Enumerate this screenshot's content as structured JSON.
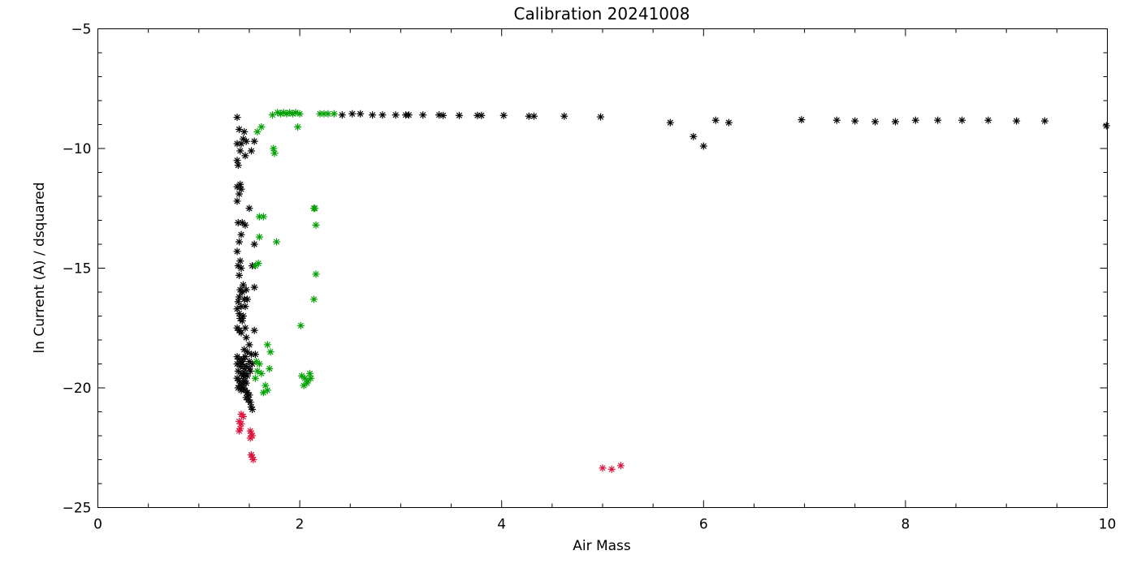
{
  "chart_data": {
    "type": "scatter",
    "title": "Calibration 20241008",
    "xlabel": "Air Mass",
    "ylabel": "ln Current (A) / dsquared",
    "xlim": [
      0,
      10
    ],
    "ylim": [
      -25,
      -5
    ],
    "x_ticks": [
      0,
      2,
      4,
      6,
      8,
      10
    ],
    "x_tick_labels": [
      "0",
      "2",
      "4",
      "6",
      "8",
      "10"
    ],
    "x_minor_step": 0.5,
    "y_ticks": [
      -25,
      -20,
      -15,
      -10,
      -5
    ],
    "y_tick_labels": [
      "−25",
      "−20",
      "−15",
      "−10",
      "−5"
    ],
    "y_minor_step": 1,
    "grid": false,
    "marker": "asterisk",
    "series": [
      {
        "color": "#000000",
        "points": [
          [
            1.38,
            -8.7
          ],
          [
            1.4,
            -9.2
          ],
          [
            1.45,
            -9.3
          ],
          [
            1.44,
            -9.6
          ],
          [
            1.42,
            -9.8
          ],
          [
            1.47,
            -9.7
          ],
          [
            1.38,
            -9.8
          ],
          [
            1.55,
            -9.7
          ],
          [
            1.41,
            -10.1
          ],
          [
            1.46,
            -10.3
          ],
          [
            1.52,
            -10.1
          ],
          [
            1.38,
            -10.5
          ],
          [
            1.39,
            -10.7
          ],
          [
            1.38,
            -11.6
          ],
          [
            1.41,
            -11.5
          ],
          [
            1.42,
            -11.7
          ],
          [
            1.4,
            -11.9
          ],
          [
            1.38,
            -12.2
          ],
          [
            1.5,
            -12.5
          ],
          [
            1.39,
            -13.1
          ],
          [
            1.43,
            -13.1
          ],
          [
            1.46,
            -13.2
          ],
          [
            1.42,
            -13.6
          ],
          [
            1.4,
            -13.9
          ],
          [
            1.55,
            -14.0
          ],
          [
            1.38,
            -14.3
          ],
          [
            1.41,
            -14.7
          ],
          [
            1.39,
            -14.9
          ],
          [
            1.42,
            -15.0
          ],
          [
            1.53,
            -14.9
          ],
          [
            1.4,
            -15.3
          ],
          [
            1.44,
            -15.7
          ],
          [
            1.41,
            -15.9
          ],
          [
            1.47,
            -15.9
          ],
          [
            1.55,
            -15.8
          ],
          [
            1.43,
            -16.0
          ],
          [
            1.4,
            -16.2
          ],
          [
            1.45,
            -16.3
          ],
          [
            1.39,
            -16.4
          ],
          [
            1.48,
            -16.3
          ],
          [
            1.42,
            -16.6
          ],
          [
            1.38,
            -16.7
          ],
          [
            1.46,
            -16.6
          ],
          [
            1.4,
            -16.9
          ],
          [
            1.44,
            -17.0
          ],
          [
            1.41,
            -17.1
          ],
          [
            1.43,
            -17.2
          ],
          [
            1.38,
            -17.5
          ],
          [
            1.4,
            -17.6
          ],
          [
            1.42,
            -17.7
          ],
          [
            1.46,
            -17.5
          ],
          [
            1.55,
            -17.6
          ],
          [
            1.47,
            -17.9
          ],
          [
            1.5,
            -18.2
          ],
          [
            1.45,
            -18.4
          ],
          [
            1.48,
            -18.5
          ],
          [
            1.52,
            -18.6
          ],
          [
            1.56,
            -18.6
          ],
          [
            1.38,
            -18.7
          ],
          [
            1.4,
            -18.8
          ],
          [
            1.42,
            -18.9
          ],
          [
            1.44,
            -18.8
          ],
          [
            1.46,
            -18.7
          ],
          [
            1.5,
            -18.9
          ],
          [
            1.38,
            -19.0
          ],
          [
            1.41,
            -19.1
          ],
          [
            1.43,
            -19.0
          ],
          [
            1.45,
            -19.2
          ],
          [
            1.47,
            -19.1
          ],
          [
            1.5,
            -19.2
          ],
          [
            1.53,
            -19.0
          ],
          [
            1.39,
            -19.3
          ],
          [
            1.42,
            -19.4
          ],
          [
            1.44,
            -19.5
          ],
          [
            1.46,
            -19.4
          ],
          [
            1.48,
            -19.5
          ],
          [
            1.51,
            -19.3
          ],
          [
            1.38,
            -19.6
          ],
          [
            1.4,
            -19.7
          ],
          [
            1.43,
            -19.8
          ],
          [
            1.45,
            -19.7
          ],
          [
            1.47,
            -19.8
          ],
          [
            1.41,
            -19.9
          ],
          [
            1.39,
            -20.0
          ],
          [
            1.44,
            -20.0
          ],
          [
            1.46,
            -20.1
          ],
          [
            1.42,
            -20.1
          ],
          [
            1.48,
            -20.2
          ],
          [
            1.5,
            -20.3
          ],
          [
            1.47,
            -20.4
          ],
          [
            1.49,
            -20.5
          ],
          [
            1.51,
            -20.6
          ],
          [
            1.52,
            -20.8
          ],
          [
            1.53,
            -20.9
          ],
          [
            1.52,
            -22.8
          ],
          [
            2.42,
            -8.6
          ],
          [
            2.52,
            -8.55
          ],
          [
            2.6,
            -8.55
          ],
          [
            2.72,
            -8.6
          ],
          [
            2.82,
            -8.6
          ],
          [
            2.95,
            -8.6
          ],
          [
            3.05,
            -8.6
          ],
          [
            3.08,
            -8.6
          ],
          [
            3.22,
            -8.6
          ],
          [
            3.38,
            -8.6
          ],
          [
            3.42,
            -8.62
          ],
          [
            3.58,
            -8.62
          ],
          [
            3.76,
            -8.62
          ],
          [
            3.8,
            -8.62
          ],
          [
            4.02,
            -8.62
          ],
          [
            4.27,
            -8.65
          ],
          [
            4.32,
            -8.65
          ],
          [
            4.62,
            -8.65
          ],
          [
            4.98,
            -8.68
          ],
          [
            5.67,
            -8.92
          ],
          [
            5.9,
            -9.5
          ],
          [
            6.0,
            -9.9
          ],
          [
            6.12,
            -8.82
          ],
          [
            6.25,
            -8.92
          ],
          [
            6.97,
            -8.8
          ],
          [
            7.32,
            -8.82
          ],
          [
            7.5,
            -8.85
          ],
          [
            7.7,
            -8.88
          ],
          [
            7.9,
            -8.88
          ],
          [
            8.1,
            -8.82
          ],
          [
            8.32,
            -8.82
          ],
          [
            8.56,
            -8.82
          ],
          [
            8.82,
            -8.82
          ],
          [
            9.1,
            -8.85
          ],
          [
            9.38,
            -8.85
          ],
          [
            9.99,
            -9.05
          ]
        ]
      },
      {
        "color": "#00a000",
        "points": [
          [
            1.73,
            -8.6
          ],
          [
            1.78,
            -8.5
          ],
          [
            1.81,
            -8.55
          ],
          [
            1.84,
            -8.5
          ],
          [
            1.87,
            -8.55
          ],
          [
            1.9,
            -8.5
          ],
          [
            1.93,
            -8.55
          ],
          [
            1.96,
            -8.5
          ],
          [
            2.0,
            -8.55
          ],
          [
            2.2,
            -8.55
          ],
          [
            2.24,
            -8.55
          ],
          [
            2.28,
            -8.55
          ],
          [
            2.34,
            -8.55
          ],
          [
            1.98,
            -9.1
          ],
          [
            1.62,
            -9.1
          ],
          [
            1.58,
            -9.3
          ],
          [
            1.74,
            -10.0
          ],
          [
            1.75,
            -10.2
          ],
          [
            2.14,
            -12.5
          ],
          [
            2.15,
            -12.5
          ],
          [
            1.6,
            -12.85
          ],
          [
            1.64,
            -12.85
          ],
          [
            2.16,
            -13.2
          ],
          [
            1.6,
            -13.7
          ],
          [
            1.77,
            -13.9
          ],
          [
            1.59,
            -14.8
          ],
          [
            1.56,
            -14.9
          ],
          [
            2.16,
            -15.25
          ],
          [
            2.14,
            -16.3
          ],
          [
            2.01,
            -17.4
          ],
          [
            1.68,
            -18.2
          ],
          [
            1.71,
            -18.5
          ],
          [
            1.57,
            -18.9
          ],
          [
            1.6,
            -19.0
          ],
          [
            1.58,
            -19.3
          ],
          [
            1.62,
            -19.4
          ],
          [
            1.7,
            -19.2
          ],
          [
            1.56,
            -19.6
          ],
          [
            1.66,
            -19.9
          ],
          [
            1.68,
            -20.1
          ],
          [
            1.64,
            -20.2
          ],
          [
            2.02,
            -19.5
          ],
          [
            2.05,
            -19.6
          ],
          [
            2.08,
            -19.7
          ],
          [
            2.1,
            -19.4
          ],
          [
            2.04,
            -19.9
          ],
          [
            2.07,
            -19.8
          ],
          [
            2.11,
            -19.6
          ]
        ]
      },
      {
        "color": "#dc143c",
        "points": [
          [
            1.42,
            -21.1
          ],
          [
            1.44,
            -21.2
          ],
          [
            1.4,
            -21.4
          ],
          [
            1.42,
            -21.5
          ],
          [
            1.41,
            -21.7
          ],
          [
            1.4,
            -21.8
          ],
          [
            1.51,
            -21.8
          ],
          [
            1.52,
            -21.9
          ],
          [
            1.53,
            -22.0
          ],
          [
            1.51,
            -22.1
          ],
          [
            1.52,
            -22.8
          ],
          [
            1.53,
            -22.9
          ],
          [
            1.54,
            -23.0
          ],
          [
            5.0,
            -23.35
          ],
          [
            5.09,
            -23.4
          ],
          [
            5.18,
            -23.25
          ]
        ]
      }
    ]
  }
}
